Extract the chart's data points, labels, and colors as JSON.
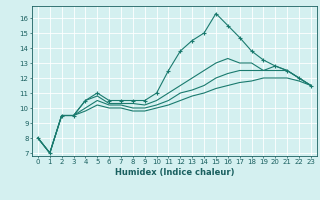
{
  "title": "",
  "xlabel": "Humidex (Indice chaleur)",
  "background_color": "#d4f0f0",
  "grid_color": "#ffffff",
  "line_color": "#1a7a6e",
  "xlim": [
    -0.5,
    23.5
  ],
  "ylim": [
    6.8,
    16.8
  ],
  "yticks": [
    7,
    8,
    9,
    10,
    11,
    12,
    13,
    14,
    15,
    16
  ],
  "xticks": [
    0,
    1,
    2,
    3,
    4,
    5,
    6,
    7,
    8,
    9,
    10,
    11,
    12,
    13,
    14,
    15,
    16,
    17,
    18,
    19,
    20,
    21,
    22,
    23
  ],
  "series": [
    [
      8.0,
      7.0,
      9.5,
      9.5,
      10.5,
      11.0,
      10.5,
      10.5,
      10.5,
      10.5,
      11.0,
      12.5,
      13.8,
      14.5,
      15.0,
      16.3,
      15.5,
      14.7,
      13.8,
      13.2,
      12.8,
      12.5,
      12.0,
      11.5
    ],
    [
      8.0,
      7.0,
      9.5,
      9.5,
      10.5,
      10.8,
      10.3,
      10.3,
      10.3,
      10.2,
      10.5,
      11.0,
      11.5,
      12.0,
      12.5,
      13.0,
      13.3,
      13.0,
      13.0,
      12.5,
      12.8,
      12.5,
      12.0,
      11.5
    ],
    [
      8.0,
      7.0,
      9.5,
      9.5,
      10.0,
      10.5,
      10.2,
      10.2,
      10.0,
      10.0,
      10.2,
      10.5,
      11.0,
      11.2,
      11.5,
      12.0,
      12.3,
      12.5,
      12.5,
      12.5,
      12.5,
      12.5,
      12.0,
      11.5
    ],
    [
      8.0,
      7.0,
      9.5,
      9.5,
      9.8,
      10.2,
      10.0,
      10.0,
      9.8,
      9.8,
      10.0,
      10.2,
      10.5,
      10.8,
      11.0,
      11.3,
      11.5,
      11.7,
      11.8,
      12.0,
      12.0,
      12.0,
      11.8,
      11.5
    ]
  ],
  "marker_series": 0,
  "xlabel_fontsize": 6,
  "xlabel_color": "#1a6060",
  "xlabel_bold": true,
  "tick_fontsize": 5,
  "tick_color": "#1a6060",
  "spine_color": "#1a6060"
}
